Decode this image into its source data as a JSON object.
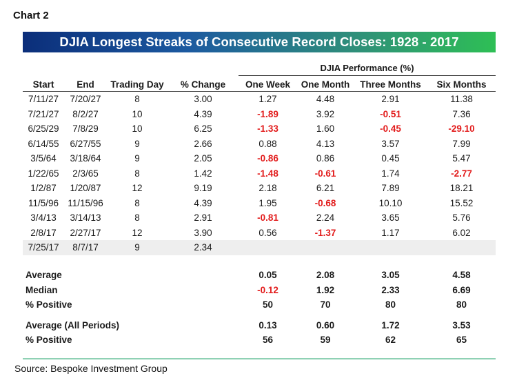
{
  "label": "Chart 2",
  "title": "DJIA Longest Streaks of Consecutive Record Closes: 1928 - 2017",
  "group_header": "DJIA Performance (%)",
  "columns": [
    "Start",
    "End",
    "Trading Day",
    "% Change",
    "One Week",
    "One Month",
    "Three Months",
    "Six Months"
  ],
  "rows": [
    {
      "c": [
        "7/11/27",
        "7/20/27",
        "8",
        "3.00",
        "1.27",
        "4.48",
        "2.91",
        "11.38"
      ],
      "neg": []
    },
    {
      "c": [
        "7/21/27",
        "8/2/27",
        "10",
        "4.39",
        "-1.89",
        "3.92",
        "-0.51",
        "7.36"
      ],
      "neg": [
        4,
        6
      ]
    },
    {
      "c": [
        "6/25/29",
        "7/8/29",
        "10",
        "6.25",
        "-1.33",
        "1.60",
        "-0.45",
        "-29.10"
      ],
      "neg": [
        4,
        6,
        7
      ]
    },
    {
      "c": [
        "6/14/55",
        "6/27/55",
        "9",
        "2.66",
        "0.88",
        "4.13",
        "3.57",
        "7.99"
      ],
      "neg": []
    },
    {
      "c": [
        "3/5/64",
        "3/18/64",
        "9",
        "2.05",
        "-0.86",
        "0.86",
        "0.45",
        "5.47"
      ],
      "neg": [
        4
      ]
    },
    {
      "c": [
        "1/22/65",
        "2/3/65",
        "8",
        "1.42",
        "-1.48",
        "-0.61",
        "1.74",
        "-2.77"
      ],
      "neg": [
        4,
        5,
        7
      ]
    },
    {
      "c": [
        "1/2/87",
        "1/20/87",
        "12",
        "9.19",
        "2.18",
        "6.21",
        "7.89",
        "18.21"
      ],
      "neg": []
    },
    {
      "c": [
        "11/5/96",
        "11/15/96",
        "8",
        "4.39",
        "1.95",
        "-0.68",
        "10.10",
        "15.52"
      ],
      "neg": [
        5
      ]
    },
    {
      "c": [
        "3/4/13",
        "3/14/13",
        "8",
        "2.91",
        "-0.81",
        "2.24",
        "3.65",
        "5.76"
      ],
      "neg": [
        4
      ]
    },
    {
      "c": [
        "2/8/17",
        "2/27/17",
        "12",
        "3.90",
        "0.56",
        "-1.37",
        "1.17",
        "6.02"
      ],
      "neg": [
        5
      ]
    },
    {
      "c": [
        "7/25/17",
        "8/7/17",
        "9",
        "2.34",
        "",
        "",
        "",
        ""
      ],
      "neg": [],
      "highlight": true
    }
  ],
  "summary": [
    {
      "label": "Average",
      "v": [
        "0.05",
        "2.08",
        "3.05",
        "4.58"
      ],
      "neg": []
    },
    {
      "label": "Median",
      "v": [
        "-0.12",
        "1.92",
        "2.33",
        "6.69"
      ],
      "neg": [
        0
      ]
    },
    {
      "label": "% Positive",
      "v": [
        "50",
        "70",
        "80",
        "80"
      ],
      "neg": []
    },
    {
      "label": "Average (All Periods)",
      "v": [
        "0.13",
        "0.60",
        "1.72",
        "3.53"
      ],
      "neg": [],
      "gap_before": true
    },
    {
      "label": "% Positive",
      "v": [
        "56",
        "59",
        "62",
        "65"
      ],
      "neg": []
    }
  ],
  "source": "Source: Bespoke Investment Group",
  "colors": {
    "negative": "#e21b1b",
    "banner_start": "#0b2e7a",
    "banner_end": "#2ebf55",
    "highlight_row": "#eeeeee",
    "rule": "#8fd1b4"
  }
}
